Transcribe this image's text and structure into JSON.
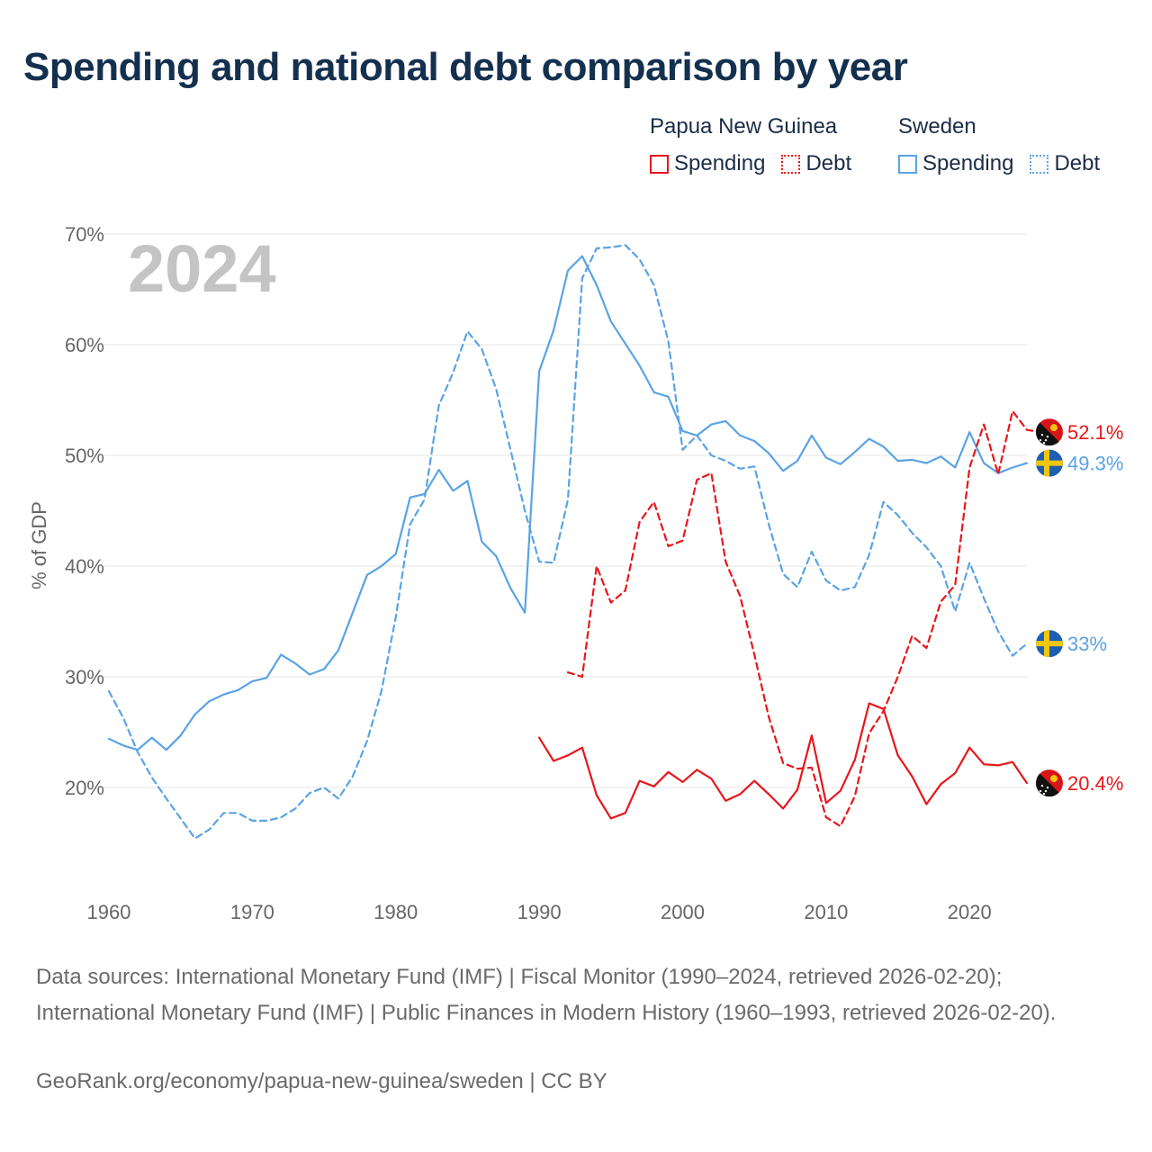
{
  "title": "Spending and national debt comparison by year",
  "legend": {
    "groups": [
      {
        "country": "Papua New Guinea",
        "color": "#e8161b",
        "items": [
          {
            "label": "Spending",
            "style": "solid"
          },
          {
            "label": "Debt",
            "style": "dotted"
          }
        ]
      },
      {
        "country": "Sweden",
        "color": "#5aa3e4",
        "items": [
          {
            "label": "Spending",
            "style": "solid"
          },
          {
            "label": "Debt",
            "style": "dotted"
          }
        ]
      }
    ]
  },
  "chart_data": {
    "type": "line",
    "year_label": "2024",
    "ylabel": "% of GDP",
    "xlim": [
      1960,
      2024
    ],
    "ylim": [
      10,
      70
    ],
    "y_ticks": [
      20,
      30,
      40,
      50,
      60,
      70
    ],
    "y_tick_labels": [
      "20%",
      "30%",
      "40%",
      "50%",
      "60%",
      "70%"
    ],
    "x_ticks": [
      1960,
      1970,
      1980,
      1990,
      2000,
      2010,
      2020
    ],
    "x_tick_labels": [
      "1960",
      "1970",
      "1980",
      "1990",
      "2000",
      "2010",
      "2020"
    ],
    "series": [
      {
        "name": "Sweden Spending",
        "country": "Sweden",
        "metric": "Spending",
        "color": "#5aa3e4",
        "dash": "solid",
        "start_year": 1960,
        "values": [
          24.4,
          23.8,
          23.4,
          24.5,
          23.4,
          24.7,
          26.6,
          27.8,
          28.4,
          28.8,
          29.6,
          29.9,
          32.0,
          31.2,
          30.2,
          30.7,
          32.4,
          35.8,
          39.2,
          40.0,
          41.1,
          46.2,
          46.5,
          48.7,
          46.8,
          47.7,
          42.2,
          40.9,
          38.0,
          35.8,
          57.6,
          61.3,
          66.7,
          68.0,
          65.4,
          62.1,
          60.1,
          58.1,
          55.7,
          55.3,
          52.2,
          51.8,
          52.8,
          53.1,
          51.8,
          51.3,
          50.2,
          48.6,
          49.5,
          51.8,
          49.8,
          49.2,
          50.3,
          51.5,
          50.8,
          49.5,
          49.6,
          49.3,
          49.9,
          48.9,
          52.1,
          49.3,
          48.4,
          48.9,
          49.3
        ],
        "end_label": "49.3%"
      },
      {
        "name": "Sweden Debt",
        "country": "Sweden",
        "metric": "Debt",
        "color": "#5aa3e4",
        "dash": "dashed",
        "start_year": 1960,
        "values": [
          28.7,
          26.3,
          23.2,
          20.9,
          19.0,
          17.2,
          15.4,
          16.2,
          17.7,
          17.7,
          17.0,
          17.0,
          17.3,
          18.1,
          19.5,
          20.0,
          19.0,
          21.0,
          24.2,
          28.7,
          35.4,
          43.8,
          46.0,
          54.5,
          57.5,
          61.2,
          59.6,
          56.0,
          50.5,
          45.0,
          40.4,
          40.3,
          46.0,
          66.0,
          68.7,
          68.8,
          69.0,
          67.7,
          65.4,
          60.3,
          50.5,
          51.8,
          50.0,
          49.5,
          48.8,
          49.0,
          43.8,
          39.3,
          38.1,
          41.3,
          38.7,
          37.8,
          38.1,
          41.0,
          45.8,
          44.6,
          43.0,
          41.7,
          40.0,
          35.9,
          40.3,
          37.1,
          34.1,
          31.9,
          33.0
        ],
        "end_label": "33%"
      },
      {
        "name": "Papua New Guinea Spending",
        "country": "Papua New Guinea",
        "metric": "Spending",
        "color": "#e8161b",
        "dash": "solid",
        "start_year": 1990,
        "values": [
          24.5,
          22.4,
          22.9,
          23.6,
          19.3,
          17.2,
          17.7,
          20.6,
          20.1,
          21.4,
          20.5,
          21.6,
          20.8,
          18.8,
          19.4,
          20.6,
          19.4,
          18.1,
          19.8,
          24.7,
          18.6,
          19.7,
          22.5,
          27.6,
          27.1,
          22.9,
          21.0,
          18.5,
          20.3,
          21.3,
          23.6,
          22.1,
          22.0,
          22.3,
          20.4
        ],
        "end_label": "20.4%"
      },
      {
        "name": "Papua New Guinea Debt",
        "country": "Papua New Guinea",
        "metric": "Debt",
        "color": "#e8161b",
        "dash": "dashed",
        "start_year": 1992,
        "values": [
          30.4,
          30.0,
          40.0,
          36.7,
          37.8,
          44.0,
          45.8,
          41.8,
          42.3,
          47.8,
          48.4,
          40.4,
          37.3,
          32.0,
          26.4,
          22.2,
          21.7,
          21.8,
          17.3,
          16.5,
          19.2,
          24.9,
          26.9,
          30.0,
          33.7,
          32.6,
          36.8,
          38.3,
          48.9,
          52.8,
          48.3,
          54.0,
          52.3,
          52.1
        ],
        "end_label": "52.1%"
      }
    ]
  },
  "footer": {
    "sources": "Data sources: International Monetary Fund (IMF) | Fiscal Monitor (1990–2024, retrieved 2026-02-20); International Monetary Fund (IMF) | Public Finances in Modern History (1960–1993, retrieved 2026-02-20).",
    "credit": "GeoRank.org/economy/papua-new-guinea/sweden | CC BY"
  }
}
